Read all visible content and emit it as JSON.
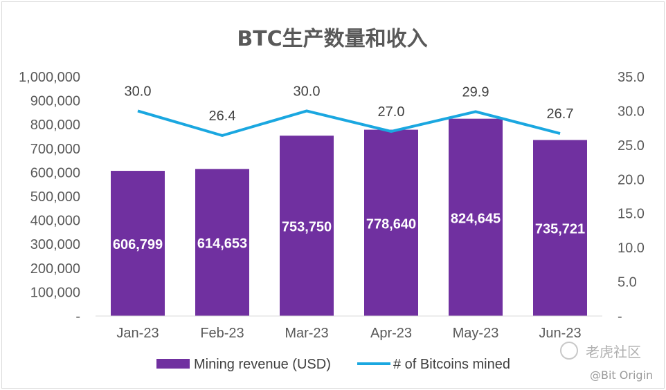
{
  "chart_data": {
    "type": "bar",
    "title": "BTC生产数量和收入",
    "categories": [
      "Jan-23",
      "Feb-23",
      "Mar-23",
      "Apr-23",
      "May-23",
      "Jun-23"
    ],
    "series": [
      {
        "name": "Mining revenue (USD)",
        "type": "bar",
        "axis": "left",
        "color": "#7030a0",
        "values": [
          606799,
          614653,
          753750,
          778640,
          824645,
          735721
        ],
        "labels": [
          "606,799",
          "614,653",
          "753,750",
          "778,640",
          "824,645",
          "735,721"
        ]
      },
      {
        "name": "# of Bitcoins mined",
        "type": "line",
        "axis": "right",
        "color": "#1aa7e0",
        "values": [
          30.0,
          26.4,
          30.0,
          27.0,
          29.9,
          26.7
        ],
        "labels": [
          "30.0",
          "26.4",
          "30.0",
          "27.0",
          "29.9",
          "26.7"
        ]
      }
    ],
    "y_left": {
      "range": [
        0,
        1000000
      ],
      "ticks": [
        "-",
        "100,000",
        "200,000",
        "300,000",
        "400,000",
        "500,000",
        "600,000",
        "700,000",
        "800,000",
        "900,000",
        "1,000,000"
      ]
    },
    "y_right": {
      "range": [
        0,
        35
      ],
      "ticks": [
        "-",
        "5.0",
        "10.0",
        "15.0",
        "20.0",
        "25.0",
        "30.0",
        "35.0"
      ]
    },
    "grid": false,
    "legend_position": "bottom"
  },
  "watermark": {
    "brand": "老虎社区",
    "handle": "@Bit Origin"
  }
}
